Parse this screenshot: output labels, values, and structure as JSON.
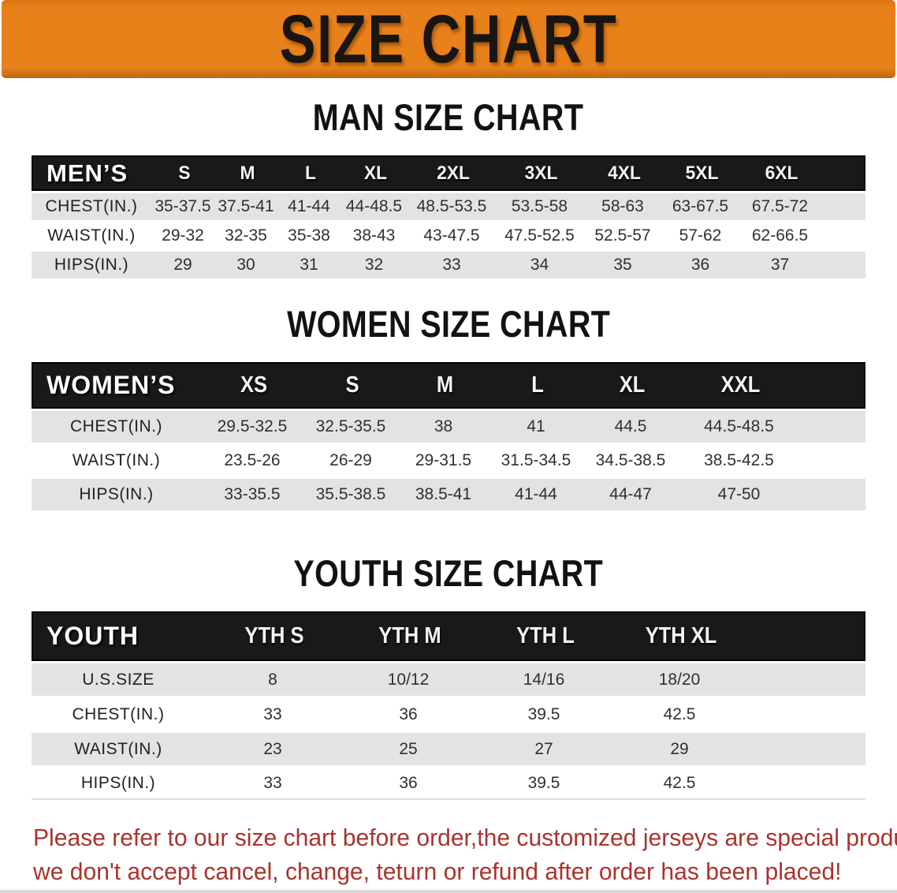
{
  "banner": {
    "title": "SIZE CHART"
  },
  "men": {
    "heading": "MAN SIZE CHART",
    "label": "MEN’S",
    "columns": [
      "S",
      "M",
      "L",
      "XL",
      "2XL",
      "3XL",
      "4XL",
      "5XL",
      "6XL"
    ],
    "rows": [
      {
        "label": "CHEST(IN.)",
        "values": [
          "35-37.5",
          "37.5-41",
          "41-44",
          "44-48.5",
          "48.5-53.5",
          "53.5-58",
          "58-63",
          "63-67.5",
          "67.5-72"
        ]
      },
      {
        "label": "WAIST(IN.)",
        "values": [
          "29-32",
          "32-35",
          "35-38",
          "38-43",
          "43-47.5",
          "47.5-52.5",
          "52.5-57",
          "57-62",
          "62-66.5"
        ]
      },
      {
        "label": "HIPS(IN.)",
        "values": [
          "29",
          "30",
          "31",
          "32",
          "33",
          "34",
          "35",
          "36",
          "37"
        ]
      }
    ]
  },
  "women": {
    "heading": "WOMEN SIZE CHART",
    "label": "WOMEN’S",
    "columns": [
      "XS",
      "S",
      "M",
      "L",
      "XL",
      "XXL"
    ],
    "rows": [
      {
        "label": "CHEST(IN.)",
        "values": [
          "29.5-32.5",
          "32.5-35.5",
          "38",
          "41",
          "44.5",
          "44.5-48.5"
        ]
      },
      {
        "label": "WAIST(IN.)",
        "values": [
          "23.5-26",
          "26-29",
          "29-31.5",
          "31.5-34.5",
          "34.5-38.5",
          "38.5-42.5"
        ]
      },
      {
        "label": "HIPS(IN.)",
        "values": [
          "33-35.5",
          "35.5-38.5",
          "38.5-41",
          "41-44",
          "44-47",
          "47-50"
        ]
      }
    ]
  },
  "youth": {
    "heading": "YOUTH SIZE CHART",
    "label": "YOUTH",
    "columns": [
      "YTH S",
      "YTH M",
      "YTH L",
      "YTH XL"
    ],
    "rows": [
      {
        "label": "U.S.SIZE",
        "values": [
          "8",
          "10/12",
          "14/16",
          "18/20"
        ]
      },
      {
        "label": "CHEST(IN.)",
        "values": [
          "33",
          "36",
          "39.5",
          "42.5"
        ]
      },
      {
        "label": "WAIST(IN.)",
        "values": [
          "23",
          "25",
          "27",
          "29"
        ]
      },
      {
        "label": "HIPS(IN.)",
        "values": [
          "33",
          "36",
          "39.5",
          "42.5"
        ]
      }
    ]
  },
  "disclaimer": {
    "line1": "Please refer to our size chart before order,the customized jerseys are special products,",
    "line2": "we don't accept cancel, change, teturn or refund after order has been placed!"
  },
  "colors": {
    "banner_orange": "#E8811A",
    "header_black": "#191919",
    "row_gray": "#E3E3E3",
    "disclaimer_red": "#A8342E"
  }
}
